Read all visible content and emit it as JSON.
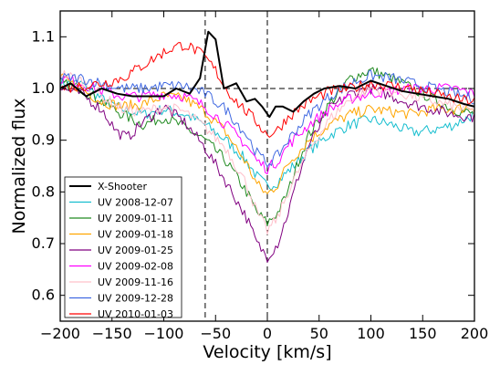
{
  "chart_data": {
    "type": "line",
    "title": "",
    "xlabel": "Velocity [km/s]",
    "ylabel": "Normalized flux",
    "xlim": [
      -200,
      200
    ],
    "ylim": [
      0.55,
      1.15
    ],
    "x_ticks": [
      -200,
      -150,
      -100,
      -50,
      0,
      50,
      100,
      150,
      200
    ],
    "y_ticks": [
      0.6,
      0.7,
      0.8,
      0.9,
      1.0,
      1.1
    ],
    "x_tick_labels": [
      "−200",
      "−150",
      "−100",
      "−50",
      "0",
      "50",
      "100",
      "150",
      "200"
    ],
    "y_tick_labels": [
      "0.6",
      "0.7",
      "0.8",
      "0.9",
      "1.0",
      "1.1"
    ],
    "grid": false,
    "legend_position": "lower-left",
    "reference_lines": {
      "horizontal": [
        1.0
      ],
      "vertical": [
        -60,
        0
      ]
    },
    "series": [
      {
        "name": "X-Shooter",
        "color": "#000000",
        "width": 2,
        "x": [
          -200,
          -190,
          -175,
          -160,
          -145,
          -130,
          -115,
          -100,
          -88,
          -75,
          -65,
          -57,
          -50,
          -42,
          -30,
          -20,
          -12,
          -5,
          2,
          8,
          15,
          25,
          35,
          45,
          55,
          70,
          85,
          100,
          115,
          130,
          145,
          160,
          175,
          190,
          200
        ],
        "y": [
          1.0,
          1.01,
          0.985,
          1.0,
          0.99,
          0.985,
          0.985,
          0.985,
          1.0,
          0.99,
          1.02,
          1.11,
          1.095,
          1.0,
          1.01,
          0.975,
          0.98,
          0.965,
          0.945,
          0.965,
          0.965,
          0.955,
          0.975,
          0.99,
          1.0,
          1.005,
          1.0,
          1.015,
          1.005,
          0.995,
          0.99,
          0.985,
          0.98,
          0.97,
          0.965
        ]
      },
      {
        "name": "UV 2008-12-07",
        "color": "#17becf",
        "width": 1,
        "x": [
          -200,
          -180,
          -160,
          -140,
          -120,
          -100,
          -80,
          -60,
          -40,
          -20,
          -10,
          0,
          10,
          20,
          40,
          60,
          80,
          100,
          120,
          140,
          160,
          180,
          200
        ],
        "y": [
          1.01,
          1.01,
          0.98,
          0.96,
          0.95,
          0.96,
          0.95,
          0.93,
          0.9,
          0.86,
          0.83,
          0.81,
          0.82,
          0.84,
          0.88,
          0.91,
          0.93,
          0.94,
          0.93,
          0.915,
          0.92,
          0.93,
          0.95
        ]
      },
      {
        "name": "UV 2009-01-11",
        "color": "#228b22",
        "width": 1,
        "x": [
          -200,
          -180,
          -160,
          -140,
          -120,
          -100,
          -80,
          -60,
          -40,
          -20,
          -10,
          0,
          10,
          20,
          30,
          40,
          60,
          80,
          100,
          120,
          140,
          160,
          180,
          200
        ],
        "y": [
          1.01,
          1.0,
          0.975,
          0.95,
          0.93,
          0.945,
          0.925,
          0.9,
          0.86,
          0.8,
          0.76,
          0.74,
          0.76,
          0.8,
          0.86,
          0.91,
          0.97,
          1.02,
          1.035,
          1.02,
          1.0,
          0.98,
          0.96,
          0.95
        ]
      },
      {
        "name": "UV 2009-01-18",
        "color": "#ffa500",
        "width": 1,
        "x": [
          -200,
          -180,
          -160,
          -140,
          -120,
          -100,
          -80,
          -60,
          -40,
          -20,
          -10,
          0,
          10,
          20,
          40,
          60,
          80,
          100,
          120,
          140,
          160,
          180,
          200
        ],
        "y": [
          1.02,
          1.0,
          0.975,
          0.965,
          0.97,
          0.985,
          0.98,
          0.955,
          0.915,
          0.855,
          0.815,
          0.795,
          0.815,
          0.855,
          0.9,
          0.93,
          0.95,
          0.96,
          0.955,
          0.95,
          0.96,
          0.96,
          0.965
        ]
      },
      {
        "name": "UV 2009-01-25",
        "color": "#800080",
        "width": 1,
        "x": [
          -200,
          -180,
          -160,
          -145,
          -135,
          -120,
          -100,
          -80,
          -60,
          -40,
          -20,
          -10,
          0,
          10,
          20,
          30,
          40,
          60,
          80,
          100,
          120,
          140,
          160,
          180,
          200
        ],
        "y": [
          1.0,
          0.99,
          0.96,
          0.915,
          0.905,
          0.935,
          0.965,
          0.935,
          0.885,
          0.82,
          0.75,
          0.7,
          0.675,
          0.7,
          0.76,
          0.83,
          0.89,
          0.96,
          0.99,
          1.0,
          0.985,
          0.97,
          0.96,
          0.95,
          0.945
        ]
      },
      {
        "name": "UV 2009-02-08",
        "color": "#ff00ff",
        "width": 1,
        "x": [
          -200,
          -180,
          -160,
          -140,
          -120,
          -100,
          -80,
          -60,
          -40,
          -20,
          -10,
          0,
          10,
          20,
          40,
          60,
          80,
          100,
          120,
          140,
          160,
          180,
          200
        ],
        "y": [
          1.02,
          1.01,
          0.995,
          0.985,
          0.985,
          0.99,
          0.985,
          0.965,
          0.93,
          0.89,
          0.86,
          0.845,
          0.86,
          0.89,
          0.93,
          0.96,
          0.98,
          0.99,
          0.995,
          1.0,
          1.0,
          1.0,
          0.99
        ]
      },
      {
        "name": "UV 2009-11-16",
        "color": "#ffc0cb",
        "width": 1,
        "x": [
          -200,
          -180,
          -160,
          -140,
          -120,
          -100,
          -80,
          -60,
          -40,
          -20,
          -10,
          0,
          10,
          20,
          40,
          60,
          80,
          100,
          120,
          140,
          160,
          180,
          200
        ],
        "y": [
          1.03,
          1.015,
          0.985,
          0.96,
          0.955,
          0.965,
          0.955,
          0.925,
          0.885,
          0.815,
          0.76,
          0.725,
          0.75,
          0.8,
          0.88,
          0.94,
          0.98,
          1.0,
          0.995,
          0.985,
          0.975,
          0.965,
          0.955
        ]
      },
      {
        "name": "UV 2009-12-28",
        "color": "#4169e1",
        "width": 1,
        "x": [
          -200,
          -180,
          -160,
          -140,
          -120,
          -100,
          -80,
          -60,
          -40,
          -20,
          -10,
          0,
          10,
          20,
          40,
          60,
          80,
          100,
          120,
          140,
          160,
          180,
          200
        ],
        "y": [
          1.02,
          1.02,
          1.01,
          1.0,
          1.0,
          1.005,
          1.005,
          0.99,
          0.96,
          0.91,
          0.875,
          0.855,
          0.87,
          0.9,
          0.95,
          0.985,
          1.01,
          1.025,
          1.02,
          1.01,
          1.0,
          0.99,
          0.98
        ]
      },
      {
        "name": "UV 2010-01-03",
        "color": "#ff0000",
        "width": 1,
        "x": [
          -200,
          -180,
          -160,
          -140,
          -120,
          -100,
          -90,
          -80,
          -70,
          -60,
          -50,
          -40,
          -30,
          -20,
          -10,
          0,
          10,
          20,
          40,
          60,
          80,
          100,
          120,
          140,
          160,
          180,
          200
        ],
        "y": [
          1.0,
          1.005,
          1.01,
          1.02,
          1.045,
          1.07,
          1.08,
          1.085,
          1.075,
          1.06,
          1.035,
          1.0,
          0.975,
          0.955,
          0.935,
          0.91,
          0.92,
          0.945,
          0.975,
          0.995,
          1.0,
          1.01,
          1.005,
          1.0,
          0.99,
          0.98,
          0.975
        ]
      }
    ]
  }
}
